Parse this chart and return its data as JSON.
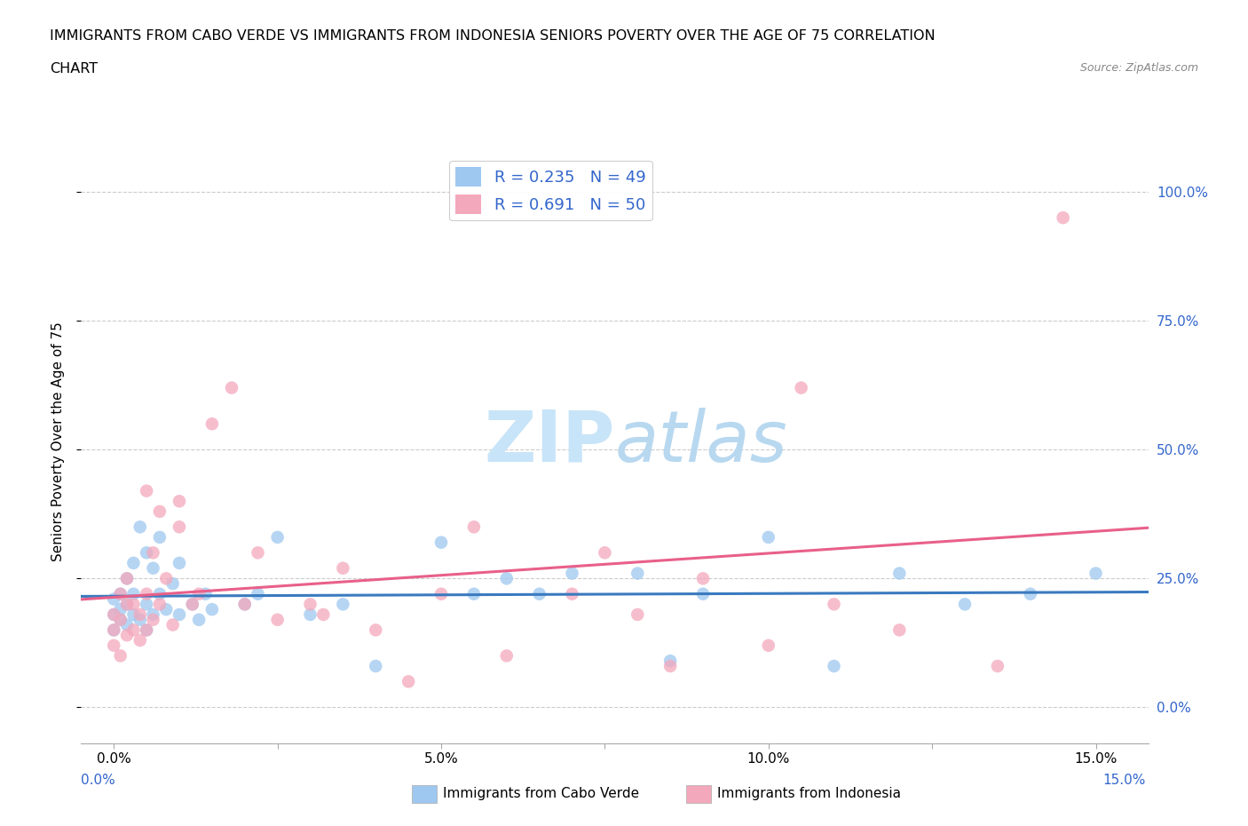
{
  "title_line1": "IMMIGRANTS FROM CABO VERDE VS IMMIGRANTS FROM INDONESIA SENIORS POVERTY OVER THE AGE OF 75 CORRELATION",
  "title_line2": "CHART",
  "source_text": "Source: ZipAtlas.com",
  "ylabel": "Seniors Poverty Over the Age of 75",
  "ytick_labels": [
    "0.0%",
    "25.0%",
    "50.0%",
    "75.0%",
    "100.0%"
  ],
  "ytick_values": [
    0.0,
    0.25,
    0.5,
    0.75,
    1.0
  ],
  "xtick_values": [
    0.0,
    0.025,
    0.05,
    0.075,
    0.1,
    0.125,
    0.15
  ],
  "xtick_labels": [
    "0.0%",
    "",
    "5.0%",
    "",
    "10.0%",
    "",
    "15.0%"
  ],
  "xmin": -0.005,
  "xmax": 0.158,
  "ymin": -0.07,
  "ymax": 1.1,
  "R_cabo": 0.235,
  "N_cabo": 49,
  "R_indonesia": 0.691,
  "N_indonesia": 50,
  "color_cabo": "#9ec8f0",
  "color_indonesia": "#f4a8bc",
  "trendline_cabo": "#3a7abf",
  "trendline_indonesia": "#e8608a",
  "watermark_color": "#c8e4f8",
  "legend_label_cabo": "Immigrants from Cabo Verde",
  "legend_label_indonesia": "Immigrants from Indonesia",
  "cabo_x": [
    0.0,
    0.0,
    0.0,
    0.001,
    0.001,
    0.001,
    0.002,
    0.002,
    0.002,
    0.003,
    0.003,
    0.003,
    0.004,
    0.004,
    0.005,
    0.005,
    0.005,
    0.006,
    0.006,
    0.007,
    0.007,
    0.008,
    0.009,
    0.01,
    0.01,
    0.012,
    0.013,
    0.014,
    0.015,
    0.02,
    0.022,
    0.025,
    0.03,
    0.035,
    0.04,
    0.05,
    0.055,
    0.06,
    0.065,
    0.07,
    0.08,
    0.085,
    0.09,
    0.1,
    0.11,
    0.12,
    0.13,
    0.14,
    0.15
  ],
  "cabo_y": [
    0.15,
    0.18,
    0.21,
    0.17,
    0.19,
    0.22,
    0.16,
    0.2,
    0.25,
    0.18,
    0.22,
    0.28,
    0.17,
    0.35,
    0.15,
    0.2,
    0.3,
    0.18,
    0.27,
    0.22,
    0.33,
    0.19,
    0.24,
    0.18,
    0.28,
    0.2,
    0.17,
    0.22,
    0.19,
    0.2,
    0.22,
    0.33,
    0.18,
    0.2,
    0.08,
    0.32,
    0.22,
    0.25,
    0.22,
    0.26,
    0.26,
    0.09,
    0.22,
    0.33,
    0.08,
    0.26,
    0.2,
    0.22,
    0.26
  ],
  "indonesia_x": [
    0.0,
    0.0,
    0.0,
    0.001,
    0.001,
    0.001,
    0.002,
    0.002,
    0.002,
    0.003,
    0.003,
    0.004,
    0.004,
    0.005,
    0.005,
    0.005,
    0.006,
    0.006,
    0.007,
    0.007,
    0.008,
    0.009,
    0.01,
    0.01,
    0.012,
    0.013,
    0.015,
    0.018,
    0.02,
    0.022,
    0.025,
    0.03,
    0.032,
    0.035,
    0.04,
    0.045,
    0.05,
    0.055,
    0.06,
    0.07,
    0.075,
    0.08,
    0.085,
    0.09,
    0.1,
    0.105,
    0.11,
    0.12,
    0.135,
    0.145
  ],
  "indonesia_y": [
    0.12,
    0.15,
    0.18,
    0.1,
    0.17,
    0.22,
    0.14,
    0.2,
    0.25,
    0.15,
    0.2,
    0.13,
    0.18,
    0.15,
    0.22,
    0.42,
    0.17,
    0.3,
    0.38,
    0.2,
    0.25,
    0.16,
    0.35,
    0.4,
    0.2,
    0.22,
    0.55,
    0.62,
    0.2,
    0.3,
    0.17,
    0.2,
    0.18,
    0.27,
    0.15,
    0.05,
    0.22,
    0.35,
    0.1,
    0.22,
    0.3,
    0.18,
    0.08,
    0.25,
    0.12,
    0.62,
    0.2,
    0.15,
    0.08,
    0.95
  ]
}
